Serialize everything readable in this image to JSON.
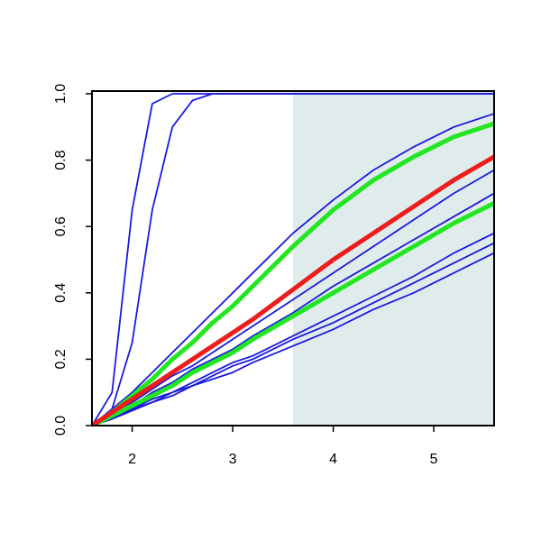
{
  "chart_data": {
    "type": "line",
    "x": [
      1.6,
      1.8,
      2.0,
      2.2,
      2.4,
      2.6,
      2.8,
      3.0,
      3.2,
      3.6,
      4.0,
      4.4,
      4.8,
      5.2,
      5.6
    ],
    "series": [
      {
        "color": "#1a1adc",
        "values": [
          0,
          0.1,
          0.65,
          0.97,
          1,
          1,
          1,
          1,
          1,
          1,
          1,
          1,
          1,
          1,
          1
        ]
      },
      {
        "color": "#1a1adc",
        "values": [
          0,
          0.05,
          0.25,
          0.65,
          0.9,
          0.98,
          1,
          1,
          1,
          1,
          1,
          1,
          1,
          1,
          1
        ]
      },
      {
        "color": "#1a1adc",
        "values": [
          0,
          0.05,
          0.1,
          0.16,
          0.22,
          0.28,
          0.34,
          0.4,
          0.46,
          0.58,
          0.68,
          0.77,
          0.84,
          0.9,
          0.94
        ]
      },
      {
        "color": "#1a1adc",
        "values": [
          0,
          0.03,
          0.07,
          0.11,
          0.15,
          0.18,
          0.22,
          0.26,
          0.3,
          0.38,
          0.46,
          0.54,
          0.62,
          0.7,
          0.77
        ]
      },
      {
        "color": "#1a1adc",
        "values": [
          0,
          0.03,
          0.06,
          0.1,
          0.13,
          0.17,
          0.2,
          0.23,
          0.27,
          0.34,
          0.42,
          0.49,
          0.56,
          0.63,
          0.7
        ]
      },
      {
        "color": "#1a1adc",
        "values": [
          0,
          0.025,
          0.05,
          0.08,
          0.1,
          0.13,
          0.16,
          0.19,
          0.21,
          0.27,
          0.33,
          0.39,
          0.45,
          0.52,
          0.58
        ]
      },
      {
        "color": "#1a1adc",
        "values": [
          0,
          0.02,
          0.05,
          0.07,
          0.1,
          0.12,
          0.15,
          0.18,
          0.2,
          0.26,
          0.31,
          0.37,
          0.43,
          0.49,
          0.55
        ]
      },
      {
        "color": "#1a1adc",
        "values": [
          0,
          0.02,
          0.045,
          0.07,
          0.09,
          0.12,
          0.14,
          0.16,
          0.19,
          0.24,
          0.29,
          0.35,
          0.4,
          0.46,
          0.52
        ]
      },
      {
        "color": "#22e622",
        "values": [
          0,
          0.04,
          0.09,
          0.14,
          0.2,
          0.25,
          0.31,
          0.36,
          0.42,
          0.54,
          0.65,
          0.74,
          0.81,
          0.87,
          0.91
        ]
      },
      {
        "color": "#22e622",
        "values": [
          0,
          0.03,
          0.06,
          0.09,
          0.12,
          0.16,
          0.19,
          0.22,
          0.26,
          0.33,
          0.4,
          0.47,
          0.54,
          0.61,
          0.67
        ]
      },
      {
        "color": "#ee1c1c",
        "values": [
          0,
          0.04,
          0.08,
          0.12,
          0.16,
          0.2,
          0.24,
          0.28,
          0.32,
          0.41,
          0.5,
          0.58,
          0.66,
          0.74,
          0.81
        ]
      }
    ],
    "xlim": [
      1.6,
      5.6
    ],
    "ylim": [
      0,
      1
    ],
    "xticks": [
      2,
      3,
      4,
      5
    ],
    "yticks": [
      {
        "value": 0,
        "label": "0.0"
      },
      0.2,
      0.4,
      0.6,
      0.8,
      {
        "value": 1,
        "label": "1.0"
      }
    ],
    "shaded_region": {
      "x": [
        3.6,
        5.6
      ],
      "color": "#e0ecec"
    },
    "grid": false
  }
}
